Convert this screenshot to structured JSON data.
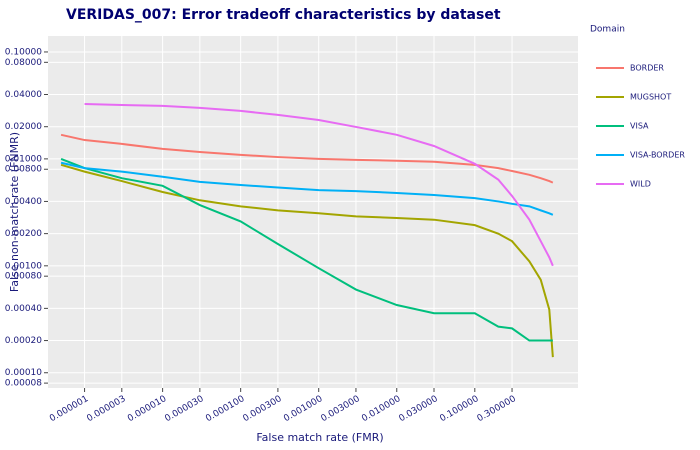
{
  "chart_data": {
    "type": "line",
    "title": "VERIDAS_007: Error tradeoff characteristics by dataset",
    "x_label": "False match rate (FMR)",
    "y_label": "False non-match rate (FNMR)",
    "legend_title": "Domain",
    "log_x": true,
    "log_y": true,
    "grid": true,
    "legend_position": "right",
    "x": [
      5e-07,
      1e-06,
      3e-06,
      1e-05,
      3e-05,
      0.0001,
      0.0003,
      0.001,
      0.003,
      0.01,
      0.03,
      0.1,
      0.2,
      0.3,
      0.5,
      0.7,
      0.9,
      1.0
    ],
    "series": [
      {
        "name": "BORDER",
        "color": "#f8766d",
        "values": [
          0.0168,
          0.015,
          0.0138,
          0.0124,
          0.0116,
          0.0109,
          0.0104,
          0.01,
          0.0098,
          0.0096,
          0.0094,
          0.0088,
          0.0082,
          0.0077,
          0.0071,
          0.0066,
          0.0062,
          0.006
        ]
      },
      {
        "name": "MUGSHOT",
        "color": "#a3a500",
        "values": [
          0.0088,
          0.0076,
          0.0062,
          0.0049,
          0.0041,
          0.0036,
          0.0033,
          0.0031,
          0.0029,
          0.0028,
          0.0027,
          0.0024,
          0.002,
          0.0017,
          0.0011,
          0.00074,
          0.00039,
          0.00014
        ]
      },
      {
        "name": "VISA",
        "color": "#00bf7d",
        "values": [
          0.01,
          0.0082,
          0.0066,
          0.0056,
          0.0037,
          0.0026,
          0.0016,
          0.00095,
          0.0006,
          0.00043,
          0.00036,
          0.00036,
          0.00027,
          0.00026,
          0.0002,
          0.0002,
          0.0002,
          0.0002
        ]
      },
      {
        "name": "VISA-BORDER",
        "color": "#00b0f6",
        "values": [
          0.0092,
          0.0082,
          0.0076,
          0.0068,
          0.0061,
          0.0057,
          0.0054,
          0.0051,
          0.005,
          0.0048,
          0.0046,
          0.0043,
          0.004,
          0.0038,
          0.0036,
          0.0033,
          0.0031,
          0.003
        ]
      },
      {
        "name": "WILD",
        "color": "#e76bf3",
        "values": [
          null,
          0.0326,
          0.0319,
          0.0313,
          0.03,
          0.0281,
          0.0258,
          0.0231,
          0.0199,
          0.0168,
          0.0132,
          0.009,
          0.0064,
          0.0045,
          0.0027,
          0.0017,
          0.0012,
          0.001
        ]
      }
    ],
    "xlim": [
      3.4e-07,
      2.1
    ],
    "ylim": [
      7.2e-05,
      0.141
    ],
    "xticks": [
      {
        "value": 1e-06,
        "label": "0.000001"
      },
      {
        "value": 3e-06,
        "label": "0.000003"
      },
      {
        "value": 1e-05,
        "label": "0.000010"
      },
      {
        "value": 3e-05,
        "label": "0.000030"
      },
      {
        "value": 0.0001,
        "label": "0.000100"
      },
      {
        "value": 0.0003,
        "label": "0.000300"
      },
      {
        "value": 0.001,
        "label": "0.001000"
      },
      {
        "value": 0.003,
        "label": "0.003000"
      },
      {
        "value": 0.01,
        "label": "0.010000"
      },
      {
        "value": 0.03,
        "label": "0.030000"
      },
      {
        "value": 0.1,
        "label": "0.100000"
      },
      {
        "value": 0.3,
        "label": "0.300000"
      }
    ],
    "yticks": [
      {
        "value": 0.1,
        "label": "0.10000"
      },
      {
        "value": 0.08,
        "label": "0.08000"
      },
      {
        "value": 0.04,
        "label": "0.04000"
      },
      {
        "value": 0.02,
        "label": "0.02000"
      },
      {
        "value": 0.01,
        "label": "0.01000"
      },
      {
        "value": 0.008,
        "label": "0.00800"
      },
      {
        "value": 0.004,
        "label": "0.00400"
      },
      {
        "value": 0.002,
        "label": "0.00200"
      },
      {
        "value": 0.001,
        "label": "0.00100"
      },
      {
        "value": 0.0008,
        "label": "0.00080"
      },
      {
        "value": 0.0004,
        "label": "0.00040"
      },
      {
        "value": 0.0002,
        "label": "0.00020"
      },
      {
        "value": 0.0001,
        "label": "0.00010"
      },
      {
        "value": 8e-05,
        "label": "0.00008"
      }
    ]
  }
}
